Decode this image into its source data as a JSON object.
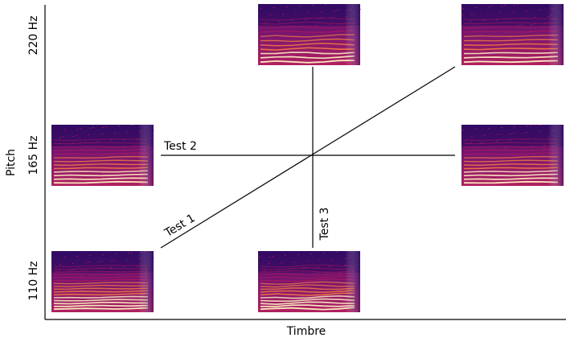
{
  "axes": {
    "x_label": "Timbre",
    "y_label": "Pitch",
    "y_ticks": [
      "220 Hz",
      "165 Hz",
      "110 Hz"
    ]
  },
  "tests": [
    {
      "label": "Test 1"
    },
    {
      "label": "Test 2"
    },
    {
      "label": "Test 3"
    }
  ],
  "spectrogram_palette": {
    "background": "#2a0a5e",
    "mid": "#c2185b",
    "harmonic": "#ff8a3d",
    "highlight": "#fff3c4"
  },
  "spectrograms": [
    {
      "pitch": "110 Hz",
      "timbre_level": 1
    },
    {
      "pitch": "110 Hz",
      "timbre_level": 2
    },
    {
      "pitch": "165 Hz",
      "timbre_level": 1
    },
    {
      "pitch": "165 Hz",
      "timbre_level": 3
    },
    {
      "pitch": "220 Hz",
      "timbre_level": 2
    },
    {
      "pitch": "220 Hz",
      "timbre_level": 3
    }
  ]
}
